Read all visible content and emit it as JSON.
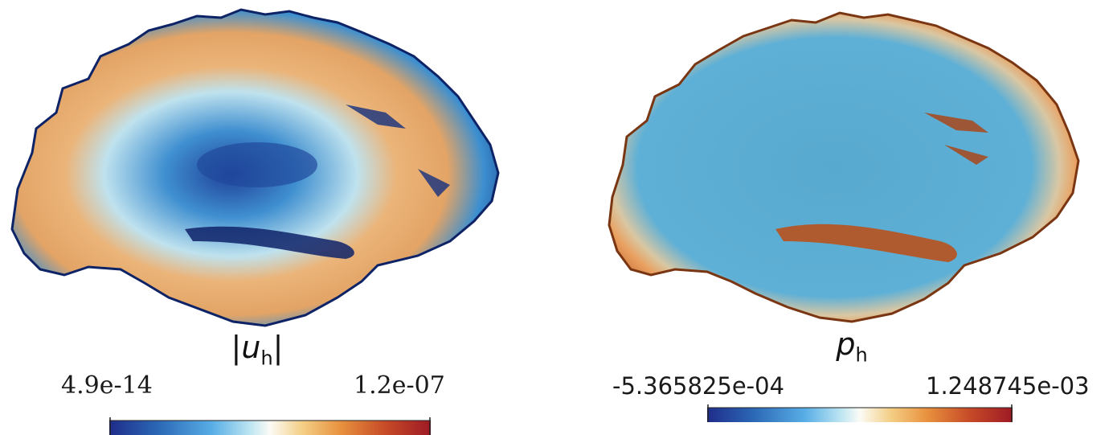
{
  "left_panel": {
    "field_label": "|uh|",
    "colorbar": {
      "min_label": "4.9e-14",
      "max_label": "1.2e-07"
    }
  },
  "right_panel": {
    "field_label": "ph",
    "colorbar": {
      "min_label": "-5.365825e-04",
      "max_label": "1.248745e-03"
    }
  },
  "colors": {
    "colormap": [
      "#1f2d8a",
      "#2b67b5",
      "#58aee6",
      "#bfe6f2",
      "#fbfbf6",
      "#f4cf86",
      "#e8913e",
      "#c64a27",
      "#9e1a25"
    ],
    "velocity_low": "#0f2a78",
    "velocity_mid": "#4aa3da",
    "velocity_high": "#e9a867",
    "pressure_low": "#54a6cc",
    "pressure_high": "#c5612a"
  }
}
